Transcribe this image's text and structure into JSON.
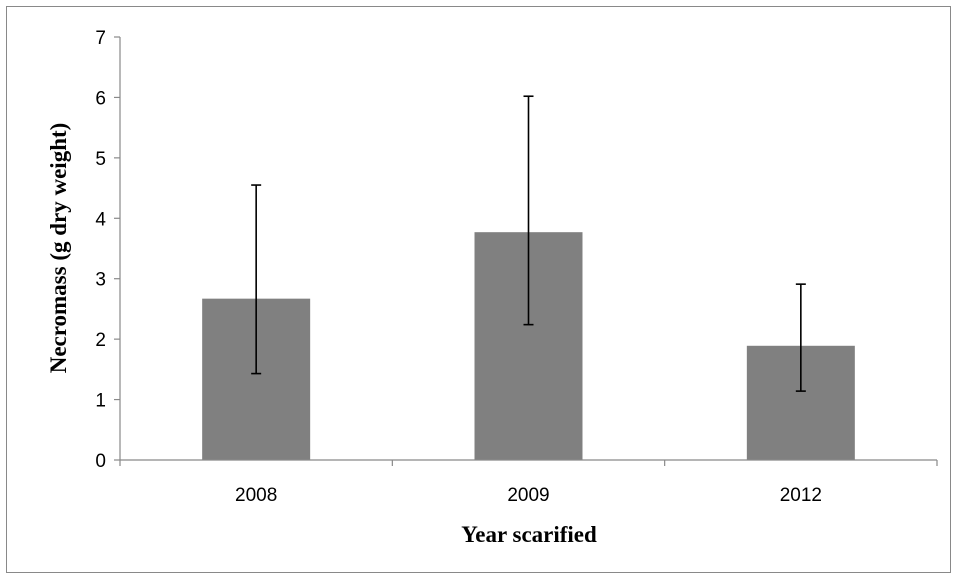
{
  "chart_data": {
    "type": "bar",
    "categories": [
      "2008",
      "2009",
      "2012"
    ],
    "values": [
      2.67,
      3.77,
      1.89
    ],
    "error_upper": [
      4.55,
      6.02,
      2.91
    ],
    "error_lower": [
      1.43,
      2.24,
      1.14
    ],
    "xlabel": "Year scarified",
    "ylabel": "Necromass (g dry weight)",
    "ylim": [
      0,
      7
    ],
    "yticks": [
      "0",
      "1",
      "2",
      "3",
      "4",
      "5",
      "6",
      "7"
    ],
    "grid": false,
    "legend": "none",
    "bar_color": "#808080",
    "axis_color": "#898989",
    "error_bar_color": "#000000"
  }
}
